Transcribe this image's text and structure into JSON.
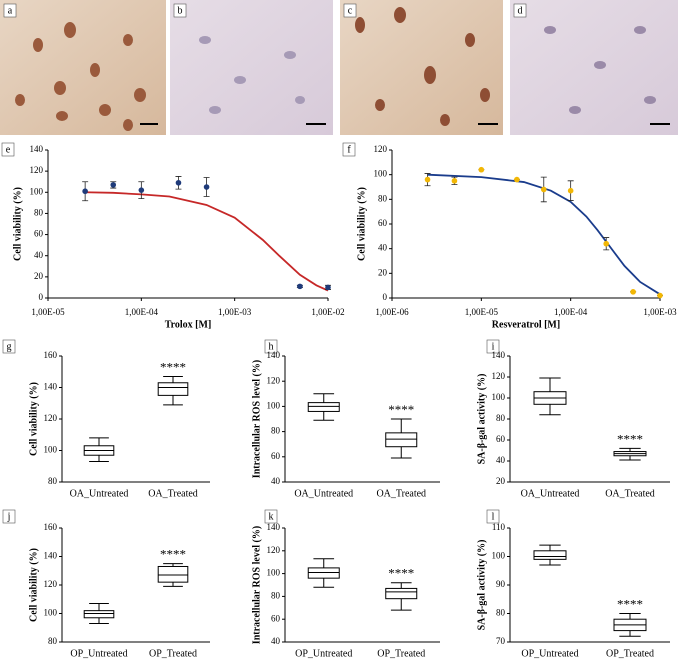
{
  "images": [
    {
      "label": "a"
    },
    {
      "label": "b"
    },
    {
      "label": "c"
    },
    {
      "label": "d"
    }
  ],
  "chart_data": [
    {
      "type": "scatter",
      "panel_label": "e",
      "x_label": "Trolox [M]",
      "y_label": "Cell viability (%)",
      "xlog": true,
      "xlim": [
        1e-05,
        0.01
      ],
      "xticks": [
        {
          "value": 1e-05,
          "label": "1,00E-05"
        },
        {
          "value": 0.0001,
          "label": "1,00E-04"
        },
        {
          "value": 0.001,
          "label": "1,00E-03"
        },
        {
          "value": 0.01,
          "label": "1,00E-02"
        }
      ],
      "ylim": [
        0,
        140
      ],
      "yticks": [
        0,
        20,
        40,
        60,
        80,
        100,
        120,
        140
      ],
      "points": {
        "color": "#1f3b7a",
        "x": [
          2.5e-05,
          5e-05,
          0.0001,
          0.00025,
          0.0005,
          0.005,
          0.01
        ],
        "values": [
          101,
          107,
          102,
          109,
          105,
          11,
          10
        ],
        "errors": [
          9,
          3,
          8,
          6,
          9,
          1,
          2
        ]
      },
      "curve": {
        "color": "#c62828",
        "x": [
          2.5e-05,
          5e-05,
          0.0001,
          0.0002,
          0.0005,
          0.001,
          0.002,
          0.003,
          0.005,
          0.0075,
          0.01
        ],
        "values": [
          100,
          99.5,
          98,
          96,
          88,
          76,
          55,
          40,
          22,
          12,
          7
        ]
      }
    },
    {
      "type": "scatter",
      "panel_label": "f",
      "x_label": "Resveratrol [M]",
      "y_label": "Cell viability (%)",
      "xlog": true,
      "xlim": [
        1e-06,
        0.001
      ],
      "xticks": [
        {
          "value": 1e-06,
          "label": "1,00E-06"
        },
        {
          "value": 1e-05,
          "label": "1,00E-05"
        },
        {
          "value": 0.0001,
          "label": "1,00E-04"
        },
        {
          "value": 0.001,
          "label": "1,00E-03"
        }
      ],
      "ylim": [
        0,
        120
      ],
      "yticks": [
        0,
        20,
        40,
        60,
        80,
        100,
        120
      ],
      "points": {
        "color": "#f2b705",
        "x": [
          2.5e-06,
          5e-06,
          1e-05,
          2.5e-05,
          5e-05,
          0.0001,
          0.00025,
          0.0005,
          0.001
        ],
        "values": [
          96,
          95,
          104,
          96,
          88,
          87,
          44,
          5,
          2
        ],
        "errors": [
          5,
          3,
          0,
          0,
          10,
          8,
          5,
          0,
          0
        ]
      },
      "curve": {
        "color": "#1a3c8c",
        "x": [
          2.5e-06,
          1e-05,
          3e-05,
          6e-05,
          0.0001,
          0.00015,
          0.0002,
          0.0003,
          0.0004,
          0.0006,
          0.001
        ],
        "values": [
          100,
          98,
          94,
          87,
          78,
          66,
          55,
          38,
          26,
          13,
          3
        ]
      }
    },
    {
      "type": "box",
      "panel_label": "g",
      "y_label": "Cell viability (%)",
      "ylim": [
        80,
        160
      ],
      "yticks": [
        80,
        100,
        120,
        140,
        160
      ],
      "categories": [
        "OA_Untreated",
        "OA_Treated"
      ],
      "annotations": [
        null,
        "****"
      ],
      "boxes": [
        {
          "min": 93,
          "q1": 97,
          "median": 100,
          "q3": 103,
          "max": 108
        },
        {
          "min": 129,
          "q1": 135,
          "median": 140,
          "q3": 143,
          "max": 147
        }
      ]
    },
    {
      "type": "box",
      "panel_label": "h",
      "y_label": "Intracellular ROS level (%)",
      "ylim": [
        40,
        140
      ],
      "yticks": [
        40,
        60,
        80,
        100,
        120,
        140
      ],
      "categories": [
        "OA_Untreated",
        "OA_Treated"
      ],
      "annotations": [
        null,
        "****"
      ],
      "boxes": [
        {
          "min": 89,
          "q1": 96,
          "median": 100,
          "q3": 103,
          "max": 110
        },
        {
          "min": 59,
          "q1": 68,
          "median": 74,
          "q3": 79,
          "max": 90
        }
      ]
    },
    {
      "type": "box",
      "panel_label": "i",
      "y_label": "SA-β-gal activity (%)",
      "ylim": [
        20,
        140
      ],
      "yticks": [
        20,
        40,
        60,
        80,
        100,
        120,
        140
      ],
      "categories": [
        "OA_Untreated",
        "OA_Treated"
      ],
      "annotations": [
        null,
        "****"
      ],
      "boxes": [
        {
          "min": 84,
          "q1": 94,
          "median": 100,
          "q3": 106,
          "max": 119
        },
        {
          "min": 41,
          "q1": 45,
          "median": 47,
          "q3": 49,
          "max": 52
        }
      ]
    },
    {
      "type": "box",
      "panel_label": "j",
      "y_label": "Cell viability (%)",
      "ylim": [
        80,
        160
      ],
      "yticks": [
        80,
        100,
        120,
        140,
        160
      ],
      "categories": [
        "OP_Untreated",
        "OP_Treated"
      ],
      "annotations": [
        null,
        "****"
      ],
      "boxes": [
        {
          "min": 93,
          "q1": 97,
          "median": 100,
          "q3": 102,
          "max": 107
        },
        {
          "min": 119,
          "q1": 122,
          "median": 127,
          "q3": 133,
          "max": 135
        }
      ]
    },
    {
      "type": "box",
      "panel_label": "k",
      "y_label": "Intracellular ROS level (%)",
      "ylim": [
        40,
        140
      ],
      "yticks": [
        40,
        60,
        80,
        100,
        120,
        140
      ],
      "categories": [
        "OP_Untreated",
        "OP_Treated"
      ],
      "annotations": [
        null,
        "****"
      ],
      "boxes": [
        {
          "min": 88,
          "q1": 96,
          "median": 101,
          "q3": 105,
          "max": 113
        },
        {
          "min": 68,
          "q1": 78,
          "median": 84,
          "q3": 87,
          "max": 92
        }
      ]
    },
    {
      "type": "box",
      "panel_label": "l",
      "y_label": "SA-β-gal activity (%)",
      "ylim": [
        70,
        110
      ],
      "yticks": [
        70,
        80,
        90,
        100,
        110
      ],
      "categories": [
        "OP_Untreated",
        "OP_Treated"
      ],
      "annotations": [
        null,
        "****"
      ],
      "boxes": [
        {
          "min": 97,
          "q1": 99,
          "median": 100,
          "q3": 102,
          "max": 104
        },
        {
          "min": 72,
          "q1": 74,
          "median": 76,
          "q3": 78,
          "max": 80
        }
      ]
    }
  ]
}
